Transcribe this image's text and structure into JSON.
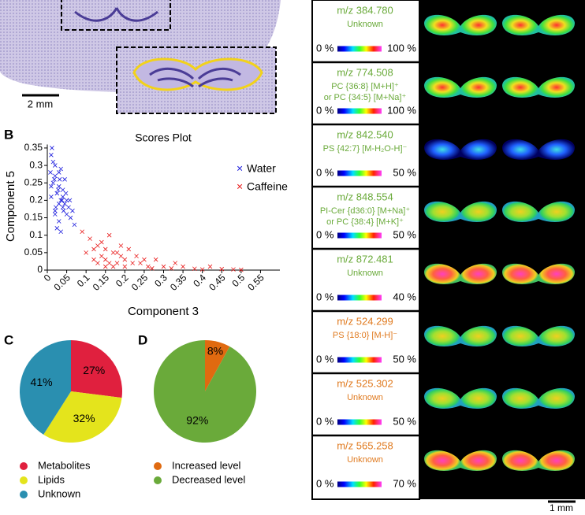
{
  "chart_data": [
    {
      "type": "scatter",
      "title": "Scores Plot",
      "xlabel": "Component 3",
      "ylabel": "Component 5",
      "xlim": [
        0,
        0.6
      ],
      "ylim": [
        0,
        0.36
      ],
      "xticks": [
        0,
        0.05,
        0.1,
        0.15,
        0.2,
        0.25,
        0.3,
        0.35,
        0.4,
        0.45,
        0.5,
        0.55
      ],
      "yticks": [
        0,
        0.05,
        0.1,
        0.15,
        0.2,
        0.25,
        0.3,
        0.35
      ],
      "legend": "upper right",
      "series": [
        {
          "name": "Water",
          "color": "#1a1adc",
          "x": [
            0.01,
            0.02,
            0.03,
            0.015,
            0.025,
            0.035,
            0.04,
            0.02,
            0.03,
            0.045,
            0.05,
            0.01,
            0.02,
            0.03,
            0.04,
            0.055,
            0.06,
            0.025,
            0.035,
            0.015,
            0.045,
            0.05,
            0.03,
            0.02,
            0.04,
            0.065,
            0.07,
            0.01,
            0.035,
            0.025,
            0.012,
            0.018,
            0.028,
            0.038,
            0.048,
            0.022,
            0.032,
            0.042,
            0.008,
            0.058
          ],
          "values": [
            0.33,
            0.3,
            0.28,
            0.25,
            0.22,
            0.2,
            0.18,
            0.27,
            0.24,
            0.19,
            0.16,
            0.21,
            0.17,
            0.14,
            0.23,
            0.18,
            0.15,
            0.12,
            0.29,
            0.31,
            0.26,
            0.2,
            0.19,
            0.16,
            0.21,
            0.17,
            0.13,
            0.24,
            0.11,
            0.22,
            0.35,
            0.26,
            0.23,
            0.2,
            0.22,
            0.18,
            0.26,
            0.17,
            0.28,
            0.2
          ]
        },
        {
          "name": "Caffeine",
          "color": "#e81818",
          "x": [
            0.1,
            0.12,
            0.14,
            0.15,
            0.16,
            0.18,
            0.2,
            0.22,
            0.13,
            0.11,
            0.17,
            0.19,
            0.21,
            0.24,
            0.26,
            0.28,
            0.3,
            0.32,
            0.35,
            0.38,
            0.4,
            0.45,
            0.5,
            0.14,
            0.16,
            0.12,
            0.15,
            0.18,
            0.23,
            0.27,
            0.09,
            0.13,
            0.17,
            0.2,
            0.25,
            0.33,
            0.42,
            0.48,
            0.15,
            0.19
          ],
          "values": [
            0.05,
            0.06,
            0.04,
            0.03,
            0.02,
            0.05,
            0.03,
            0.02,
            0.07,
            0.09,
            0.01,
            0.04,
            0.06,
            0.02,
            0.01,
            0.03,
            0.01,
            0.005,
            0.01,
            0.004,
            0.002,
            0.003,
            0.001,
            0.08,
            0.1,
            0.03,
            0.01,
            0.02,
            0.04,
            0.005,
            0.11,
            0.02,
            0.05,
            0.01,
            0.03,
            0.02,
            0.01,
            0.002,
            0.06,
            0.07
          ]
        }
      ]
    },
    {
      "type": "pie",
      "categories": [
        "Metabolites",
        "Lipids",
        "Unknown"
      ],
      "values": [
        27,
        32,
        41
      ],
      "value_labels": [
        "27%",
        "32%",
        "41%"
      ],
      "colors": [
        "#e0203e",
        "#e4e41c",
        "#2a8fb0"
      ]
    },
    {
      "type": "pie",
      "categories": [
        "Increased level",
        "Decreased level"
      ],
      "values": [
        8,
        92
      ],
      "value_labels": [
        "8%",
        "92%"
      ],
      "colors": [
        "#e06a10",
        "#6aaa3a"
      ]
    }
  ],
  "panel_labels": [
    "B",
    "C",
    "D"
  ],
  "scale_bars": [
    "2 mm",
    "1 mm"
  ],
  "ion_panel": {
    "rows": [
      {
        "mz": "m/z 384.780",
        "annotation": [
          "Unknown"
        ],
        "min": "0 %",
        "max": "100 %",
        "color": "#6aaa3a"
      },
      {
        "mz": "m/z 774.508",
        "annotation": [
          "PC {36:8} [M+H]⁺",
          "or PC {34:5} [M+Na]⁺"
        ],
        "min": "0 %",
        "max": "100 %",
        "color": "#6aaa3a"
      },
      {
        "mz": "m/z 842.540",
        "annotation": [
          "PS {42:7} [M-H₂O-H]⁻"
        ],
        "min": "0 %",
        "max": "50 %",
        "color": "#6aaa3a"
      },
      {
        "mz": "m/z 848.554",
        "annotation": [
          "PI-Cer {d36:0} [M+Na]⁺",
          "or PC {38:4} [M+K]⁺"
        ],
        "min": "0 %",
        "max": "50 %",
        "color": "#6aaa3a"
      },
      {
        "mz": "m/z 872.481",
        "annotation": [
          "Unknown"
        ],
        "min": "0 %",
        "max": "40 %",
        "color": "#6aaa3a"
      },
      {
        "mz": "m/z 524.299",
        "annotation": [
          "PS {18:0} [M-H]⁻"
        ],
        "min": "0 %",
        "max": "50 %",
        "color": "#e07a1f"
      },
      {
        "mz": "m/z 525.302",
        "annotation": [
          "Unknown"
        ],
        "min": "0 %",
        "max": "50 %",
        "color": "#e07a1f"
      },
      {
        "mz": "m/z 565.258",
        "annotation": [
          "Unknown"
        ],
        "min": "0 %",
        "max": "70 %",
        "color": "#e07a1f"
      }
    ]
  }
}
